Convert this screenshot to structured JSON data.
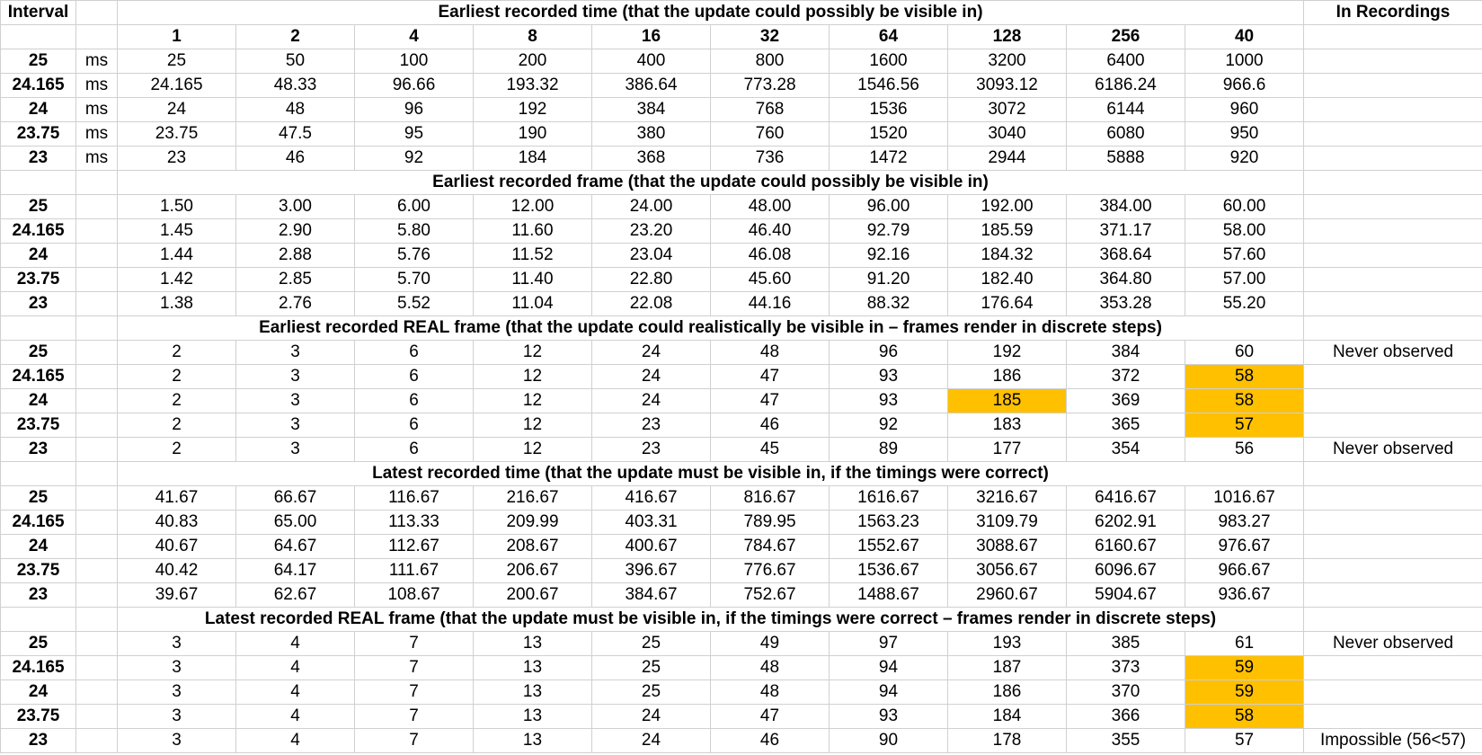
{
  "header": {
    "interval_label": "Interval",
    "in_recordings_label": "In Recordings",
    "bit_values": [
      "1",
      "2",
      "4",
      "8",
      "16",
      "32",
      "64",
      "128",
      "256",
      "40"
    ]
  },
  "highlight_color": "#ffc000",
  "sections": [
    {
      "title": "Earliest recorded time (that the update could possibly be visible in)",
      "show_header_row": true,
      "rows": [
        {
          "interval": "25",
          "unit": "ms",
          "values": [
            "25",
            "50",
            "100",
            "200",
            "400",
            "800",
            "1600",
            "3200",
            "6400",
            "1000"
          ],
          "note": "",
          "highlight": []
        },
        {
          "interval": "24.165",
          "unit": "ms",
          "values": [
            "24.165",
            "48.33",
            "96.66",
            "193.32",
            "386.64",
            "773.28",
            "1546.56",
            "3093.12",
            "6186.24",
            "966.6"
          ],
          "note": "",
          "highlight": []
        },
        {
          "interval": "24",
          "unit": "ms",
          "values": [
            "24",
            "48",
            "96",
            "192",
            "384",
            "768",
            "1536",
            "3072",
            "6144",
            "960"
          ],
          "note": "",
          "highlight": []
        },
        {
          "interval": "23.75",
          "unit": "ms",
          "values": [
            "23.75",
            "47.5",
            "95",
            "190",
            "380",
            "760",
            "1520",
            "3040",
            "6080",
            "950"
          ],
          "note": "",
          "highlight": []
        },
        {
          "interval": "23",
          "unit": "ms",
          "values": [
            "23",
            "46",
            "92",
            "184",
            "368",
            "736",
            "1472",
            "2944",
            "5888",
            "920"
          ],
          "note": "",
          "highlight": []
        }
      ]
    },
    {
      "title": "Earliest recorded frame (that the update could possibly be visible in)",
      "show_header_row": false,
      "rows": [
        {
          "interval": "25",
          "unit": "",
          "values": [
            "1.50",
            "3.00",
            "6.00",
            "12.00",
            "24.00",
            "48.00",
            "96.00",
            "192.00",
            "384.00",
            "60.00"
          ],
          "note": "",
          "highlight": []
        },
        {
          "interval": "24.165",
          "unit": "",
          "values": [
            "1.45",
            "2.90",
            "5.80",
            "11.60",
            "23.20",
            "46.40",
            "92.79",
            "185.59",
            "371.17",
            "58.00"
          ],
          "note": "",
          "highlight": []
        },
        {
          "interval": "24",
          "unit": "",
          "values": [
            "1.44",
            "2.88",
            "5.76",
            "11.52",
            "23.04",
            "46.08",
            "92.16",
            "184.32",
            "368.64",
            "57.60"
          ],
          "note": "",
          "highlight": []
        },
        {
          "interval": "23.75",
          "unit": "",
          "values": [
            "1.42",
            "2.85",
            "5.70",
            "11.40",
            "22.80",
            "45.60",
            "91.20",
            "182.40",
            "364.80",
            "57.00"
          ],
          "note": "",
          "highlight": []
        },
        {
          "interval": "23",
          "unit": "",
          "values": [
            "1.38",
            "2.76",
            "5.52",
            "11.04",
            "22.08",
            "44.16",
            "88.32",
            "176.64",
            "353.28",
            "55.20"
          ],
          "note": "",
          "highlight": []
        }
      ]
    },
    {
      "title": "Earliest recorded REAL frame (that the update could realistically be visible in – frames render in discrete steps)",
      "show_header_row": false,
      "rows": [
        {
          "interval": "25",
          "unit": "",
          "values": [
            "2",
            "3",
            "6",
            "12",
            "24",
            "48",
            "96",
            "192",
            "384",
            "60"
          ],
          "note": "Never observed",
          "highlight": []
        },
        {
          "interval": "24.165",
          "unit": "",
          "values": [
            "2",
            "3",
            "6",
            "12",
            "24",
            "47",
            "93",
            "186",
            "372",
            "58"
          ],
          "note": "",
          "highlight": [
            9
          ]
        },
        {
          "interval": "24",
          "unit": "",
          "values": [
            "2",
            "3",
            "6",
            "12",
            "24",
            "47",
            "93",
            "185",
            "369",
            "58"
          ],
          "note": "",
          "highlight": [
            7,
            9
          ]
        },
        {
          "interval": "23.75",
          "unit": "",
          "values": [
            "2",
            "3",
            "6",
            "12",
            "23",
            "46",
            "92",
            "183",
            "365",
            "57"
          ],
          "note": "",
          "highlight": [
            9
          ]
        },
        {
          "interval": "23",
          "unit": "",
          "values": [
            "2",
            "3",
            "6",
            "12",
            "23",
            "45",
            "89",
            "177",
            "354",
            "56"
          ],
          "note": "Never observed",
          "highlight": []
        }
      ]
    },
    {
      "title": "Latest recorded time (that the update must be visible in, if the timings were correct)",
      "show_header_row": false,
      "rows": [
        {
          "interval": "25",
          "unit": "",
          "values": [
            "41.67",
            "66.67",
            "116.67",
            "216.67",
            "416.67",
            "816.67",
            "1616.67",
            "3216.67",
            "6416.67",
            "1016.67"
          ],
          "note": "",
          "highlight": []
        },
        {
          "interval": "24.165",
          "unit": "",
          "values": [
            "40.83",
            "65.00",
            "113.33",
            "209.99",
            "403.31",
            "789.95",
            "1563.23",
            "3109.79",
            "6202.91",
            "983.27"
          ],
          "note": "",
          "highlight": []
        },
        {
          "interval": "24",
          "unit": "",
          "values": [
            "40.67",
            "64.67",
            "112.67",
            "208.67",
            "400.67",
            "784.67",
            "1552.67",
            "3088.67",
            "6160.67",
            "976.67"
          ],
          "note": "",
          "highlight": []
        },
        {
          "interval": "23.75",
          "unit": "",
          "values": [
            "40.42",
            "64.17",
            "111.67",
            "206.67",
            "396.67",
            "776.67",
            "1536.67",
            "3056.67",
            "6096.67",
            "966.67"
          ],
          "note": "",
          "highlight": []
        },
        {
          "interval": "23",
          "unit": "",
          "values": [
            "39.67",
            "62.67",
            "108.67",
            "200.67",
            "384.67",
            "752.67",
            "1488.67",
            "2960.67",
            "5904.67",
            "936.67"
          ],
          "note": "",
          "highlight": []
        }
      ]
    },
    {
      "title": "Latest recorded REAL frame (that the update must be visible in, if the timings were correct – frames render in discrete steps)",
      "show_header_row": false,
      "rows": [
        {
          "interval": "25",
          "unit": "",
          "values": [
            "3",
            "4",
            "7",
            "13",
            "25",
            "49",
            "97",
            "193",
            "385",
            "61"
          ],
          "note": "Never observed",
          "highlight": []
        },
        {
          "interval": "24.165",
          "unit": "",
          "values": [
            "3",
            "4",
            "7",
            "13",
            "25",
            "48",
            "94",
            "187",
            "373",
            "59"
          ],
          "note": "",
          "highlight": [
            9
          ]
        },
        {
          "interval": "24",
          "unit": "",
          "values": [
            "3",
            "4",
            "7",
            "13",
            "25",
            "48",
            "94",
            "186",
            "370",
            "59"
          ],
          "note": "",
          "highlight": [
            9
          ]
        },
        {
          "interval": "23.75",
          "unit": "",
          "values": [
            "3",
            "4",
            "7",
            "13",
            "24",
            "47",
            "93",
            "184",
            "366",
            "58"
          ],
          "note": "",
          "highlight": [
            9
          ]
        },
        {
          "interval": "23",
          "unit": "",
          "values": [
            "3",
            "4",
            "7",
            "13",
            "24",
            "46",
            "90",
            "178",
            "355",
            "57"
          ],
          "note": "Impossible (56<57)",
          "highlight": []
        }
      ]
    }
  ]
}
